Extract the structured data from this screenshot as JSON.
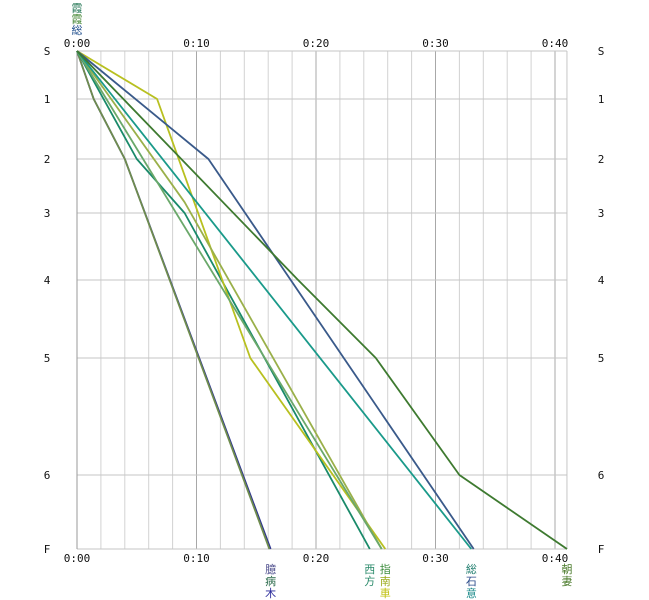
{
  "chart_data": {
    "type": "line",
    "x_unit": "elapsed time (m:ss)",
    "x_ticks": [
      "0:00",
      "0:10",
      "0:20",
      "0:30",
      "0:40"
    ],
    "xlim_minutes": [
      0,
      41
    ],
    "y_ticks": [
      "S",
      "1",
      "2",
      "3",
      "4",
      "5",
      "6",
      "F"
    ],
    "y_inverted": true,
    "ylim": [
      0,
      7
    ],
    "grid": true,
    "series": [
      {
        "labels": [
          "臆",
          "病",
          "木"
        ],
        "colors": [
          "#4a4a8a",
          "#2a6a4a",
          "#2a2a9a"
        ],
        "color": "#2e3590",
        "points": [
          [
            0,
            0
          ],
          [
            1.4,
            1
          ],
          [
            4,
            2
          ],
          [
            16.2,
            7
          ]
        ]
      },
      {
        "labels": [],
        "color": "#6f8c4e",
        "points": [
          [
            0,
            0
          ],
          [
            1.4,
            1
          ],
          [
            4,
            2
          ],
          [
            16.1,
            7
          ]
        ]
      },
      {
        "labels": [
          "西",
          "方"
        ],
        "colors": [
          "#2a8a6a",
          "#2a8a6a"
        ],
        "color": "#1a8a6a",
        "points": [
          [
            0,
            0
          ],
          [
            5,
            2
          ],
          [
            9,
            3
          ],
          [
            24.5,
            7
          ]
        ]
      },
      {
        "labels": [
          "指",
          "南",
          "車"
        ],
        "colors": [
          "#3a8a3a",
          "#9aaa1a",
          "#c0c010"
        ],
        "color": "#b8c020",
        "points": [
          [
            0,
            0
          ],
          [
            6.7,
            1
          ],
          [
            14.5,
            5
          ],
          [
            25.8,
            7
          ]
        ]
      },
      {
        "labels": [],
        "color": "#9ab04a",
        "points": [
          [
            0,
            0
          ],
          [
            9,
            2.8
          ],
          [
            25.5,
            7
          ]
        ]
      },
      {
        "labels": [],
        "color": "#6aa86a",
        "points": [
          [
            0,
            0
          ],
          [
            25.5,
            7
          ]
        ]
      },
      {
        "labels": [
          "総",
          "石",
          "意"
        ],
        "colors": [
          "#1a7a6a",
          "#2a4a8a",
          "#1a8a8a"
        ],
        "color": "#1a9a8a",
        "points": [
          [
            0,
            0
          ],
          [
            33,
            7
          ]
        ]
      },
      {
        "labels": [],
        "color": "#3a5a8a",
        "points": [
          [
            0,
            0
          ],
          [
            11,
            2
          ],
          [
            33.2,
            7
          ]
        ]
      },
      {
        "labels": [
          "朝",
          "妻"
        ],
        "colors": [
          "#4a7a2a",
          "#4a7a2a"
        ],
        "color": "#3e7a30",
        "points": [
          [
            0,
            0
          ],
          [
            18.5,
            4
          ],
          [
            25,
            5
          ],
          [
            32,
            6
          ],
          [
            41,
            7
          ]
        ]
      }
    ],
    "top_labels": [
      {
        "text": "霞",
        "color": "#2a7a5a"
      },
      {
        "text": "霞",
        "color": "#4a8a3a"
      },
      {
        "text": "総",
        "color": "#1a4a8a"
      }
    ]
  }
}
